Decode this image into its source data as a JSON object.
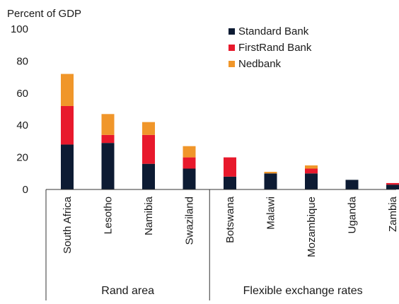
{
  "chart_data": {
    "type": "bar",
    "stacked": true,
    "ylabel": "Percent of GDP",
    "ylim": [
      0,
      100
    ],
    "yticks": [
      0,
      20,
      40,
      60,
      80,
      100
    ],
    "categories": [
      "South Africa",
      "Lesotho",
      "Namibia",
      "Swaziland",
      "Botswana",
      "Malawi",
      "Mozambique",
      "Uganda",
      "Zambia"
    ],
    "groups": [
      {
        "label": "Rand area",
        "categories": [
          "South Africa",
          "Lesotho",
          "Namibia",
          "Swaziland"
        ]
      },
      {
        "label": "Flexible exchange rates",
        "categories": [
          "Botswana",
          "Malawi",
          "Mozambique",
          "Uganda",
          "Zambia"
        ]
      }
    ],
    "series": [
      {
        "name": "Standard Bank",
        "color": "#0d1b33",
        "values": [
          28,
          29,
          16,
          13,
          8,
          10,
          10,
          6,
          3
        ]
      },
      {
        "name": "FirstRand Bank",
        "color": "#e8192c",
        "values": [
          24,
          5,
          18,
          7,
          12,
          0,
          3,
          0,
          1
        ]
      },
      {
        "name": "Nedbank",
        "color": "#f0962a",
        "values": [
          20,
          13,
          8,
          7,
          0,
          1,
          2,
          0,
          0
        ]
      }
    ],
    "legend_position": "top-right"
  }
}
